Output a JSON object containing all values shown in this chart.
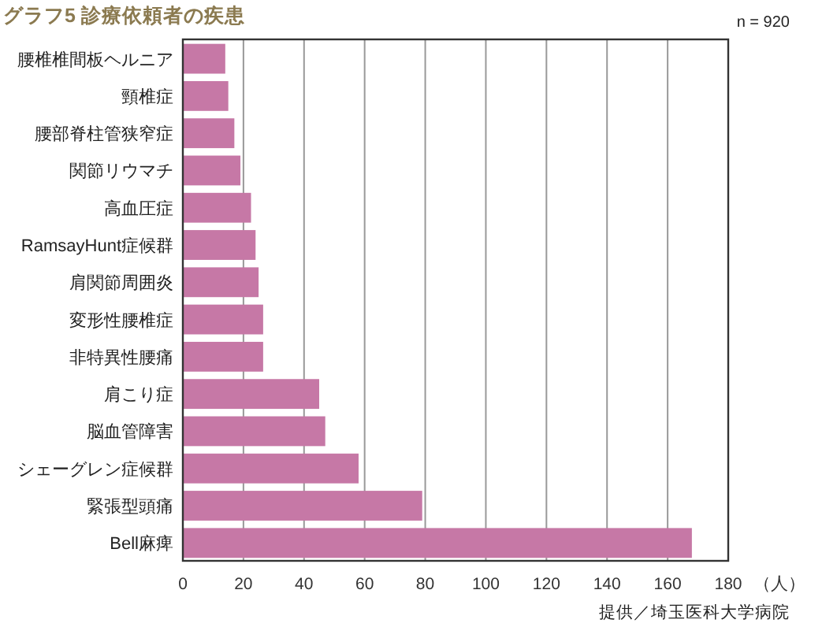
{
  "chart_data": {
    "type": "bar",
    "orientation": "horizontal",
    "title": "グラフ5 診療依頼者の疾患",
    "xlabel": "（人）",
    "categories": [
      "腰椎椎間板ヘルニア",
      "頸椎症",
      "腰部脊柱管狭窄症",
      "関節リウマチ",
      "高血圧症",
      "RamsayHunt症候群",
      "肩関節周囲炎",
      "変形性腰椎症",
      "非特異性腰痛",
      "肩こり症",
      "脳血管障害",
      "シェーグレン症候群",
      "緊張型頭痛",
      "Bell麻痺"
    ],
    "values": [
      14,
      15,
      17,
      19,
      22.5,
      24,
      25,
      26.5,
      26.5,
      45,
      47,
      58,
      79,
      168
    ],
    "color": "#c678a6",
    "xlim": [
      0,
      180
    ],
    "xticks": [
      0,
      20,
      40,
      60,
      80,
      100,
      120,
      140,
      160,
      180
    ],
    "grid": "x",
    "annotations": [
      "n = 920",
      "提供／埼玉医科大学病院"
    ]
  }
}
